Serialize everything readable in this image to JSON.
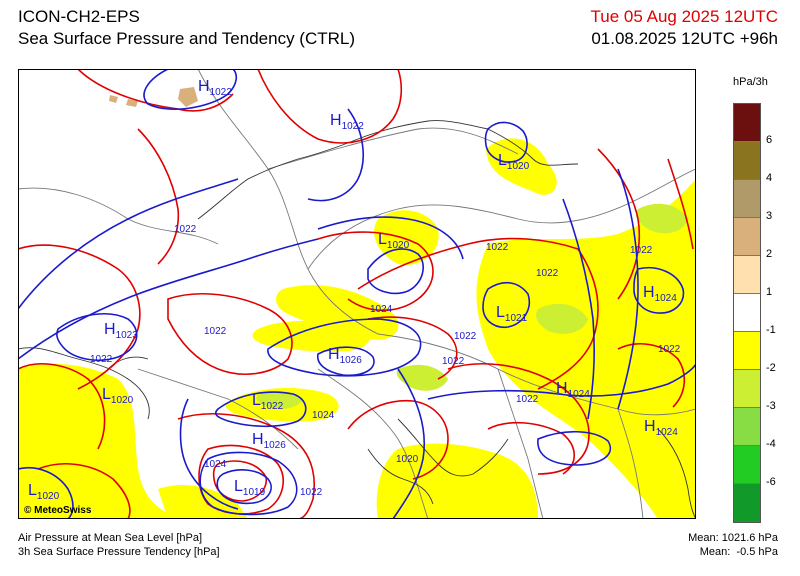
{
  "header": {
    "model": "ICON-CH2-EPS",
    "subtitle": "Sea Surface Pressure and Tendency (CTRL)",
    "valid_time": "Tue 05 Aug 2025 12UTC",
    "run_info": "01.08.2025 12UTC +96h"
  },
  "legend": {
    "unit": "hPa/3h",
    "items": [
      {
        "label": "6",
        "color": "#6b0f0f"
      },
      {
        "label": "4",
        "color": "#8a7420"
      },
      {
        "label": "3",
        "color": "#b19a6a"
      },
      {
        "label": "2",
        "color": "#d9b07c"
      },
      {
        "label": "1",
        "color": "#ffe0ae"
      },
      {
        "label": "-1",
        "color": "#ffffff"
      },
      {
        "label": "-2",
        "color": "#ffff00"
      },
      {
        "label": "-3",
        "color": "#ccee33"
      },
      {
        "label": "-4",
        "color": "#88dd44"
      },
      {
        "label": "-6",
        "color": "#22cc22"
      },
      {
        "label": "",
        "color": "#11992a"
      }
    ]
  },
  "map": {
    "pressure_labels": [
      {
        "type": "H",
        "value": "1022"
      },
      {
        "type": "H",
        "value": "1022"
      },
      {
        "type": "L",
        "value": "1020"
      },
      {
        "type": "L",
        "value": "1020"
      },
      {
        "type": "L",
        "value": "1021"
      },
      {
        "type": "H",
        "value": "1024"
      },
      {
        "type": "H",
        "value": "1023"
      },
      {
        "type": "H",
        "value": "1026"
      },
      {
        "type": "L",
        "value": "1020"
      },
      {
        "type": "L",
        "value": "1022"
      },
      {
        "type": "H",
        "value": "1026"
      },
      {
        "type": "H",
        "value": "1024"
      },
      {
        "type": "H",
        "value": "1024"
      },
      {
        "type": "L",
        "value": "1019"
      },
      {
        "type": "L",
        "value": "1020"
      }
    ],
    "isobar_labels": [
      "1022",
      "1022",
      "1022",
      "1022",
      "1024",
      "1022",
      "1022",
      "1022",
      "1022",
      "1024",
      "1022",
      "1024",
      "1022",
      "1020",
      "1022"
    ]
  },
  "footer": {
    "line1": "Air Pressure at Mean Sea Level [hPa]",
    "line2": "3h Sea Surface Pressure Tendency [hPa]",
    "mean1": "Mean: 1021.6 hPa",
    "mean2": "Mean:  -0.5 hPa",
    "credit": "© MeteoSwiss"
  },
  "colors": {
    "isobar": "#1a1acc",
    "tendency_contour": "#e00000",
    "border": "#777777",
    "rising_fill": "#d9b07c",
    "falling_fill": "#ffff00"
  }
}
